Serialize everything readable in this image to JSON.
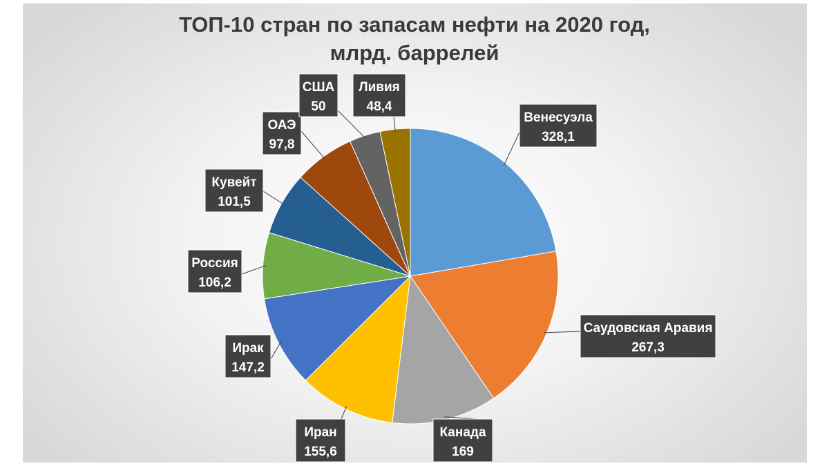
{
  "chart_data": {
    "type": "pie",
    "title": "ТОП-10 стран по запасам нефти на 2020 год,",
    "subtitle": "млрд. баррелей",
    "slices": [
      {
        "label": "Венесуэла",
        "value": 328.1,
        "value_label": "328,1",
        "color": "#5B9BD5"
      },
      {
        "label": "Саудовская Аравия",
        "value": 267.3,
        "value_label": "267,3",
        "color": "#ED7D31"
      },
      {
        "label": "Канада",
        "value": 169,
        "value_label": "169",
        "color": "#A5A5A5"
      },
      {
        "label": "Иран",
        "value": 155.6,
        "value_label": "155,6",
        "color": "#FFC000"
      },
      {
        "label": "Ирак",
        "value": 147.2,
        "value_label": "147,2",
        "color": "#4472C4"
      },
      {
        "label": "Россия",
        "value": 106.2,
        "value_label": "106,2",
        "color": "#70AD47"
      },
      {
        "label": "Кувейт",
        "value": 101.5,
        "value_label": "101,5",
        "color": "#255E91"
      },
      {
        "label": "ОАЭ",
        "value": 97.8,
        "value_label": "97,8",
        "color": "#9E480E"
      },
      {
        "label": "США",
        "value": 50,
        "value_label": "50",
        "color": "#636363"
      },
      {
        "label": "Ливия",
        "value": 48.4,
        "value_label": "48,4",
        "color": "#997300"
      }
    ],
    "start": "12 o'clock",
    "direction": "clockwise",
    "legend": "none",
    "data_labels": "callouts"
  }
}
